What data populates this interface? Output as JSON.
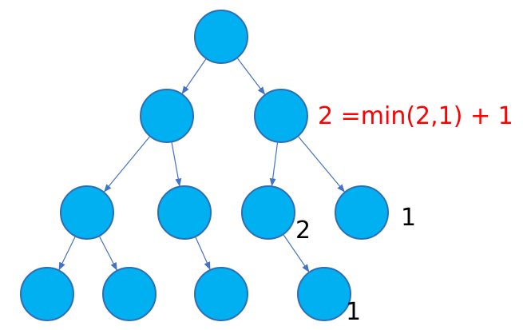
{
  "colors": {
    "node_fill": "#00B0F0",
    "node_stroke": "#2F6DB5",
    "edge": "#4472C4",
    "label": "#000000",
    "annotation": "#FF0000"
  },
  "tree": {
    "nodes": [
      "n1",
      "n2",
      "n3",
      "n4",
      "n5",
      "n6",
      "n7",
      "n8",
      "n9",
      "n10",
      "n11"
    ],
    "edges": [
      [
        "n1",
        "n2"
      ],
      [
        "n1",
        "n3"
      ],
      [
        "n2",
        "n4"
      ],
      [
        "n2",
        "n5"
      ],
      [
        "n3",
        "n6"
      ],
      [
        "n3",
        "n7"
      ],
      [
        "n4",
        "n8"
      ],
      [
        "n4",
        "n9"
      ],
      [
        "n5",
        "n10"
      ],
      [
        "n6",
        "n11"
      ]
    ]
  },
  "annotations": {
    "right_node_formula": "2 =min(2,1) + 1",
    "left_child_depth": "2",
    "right_child_depth": "1",
    "leaf_depth": "1"
  }
}
